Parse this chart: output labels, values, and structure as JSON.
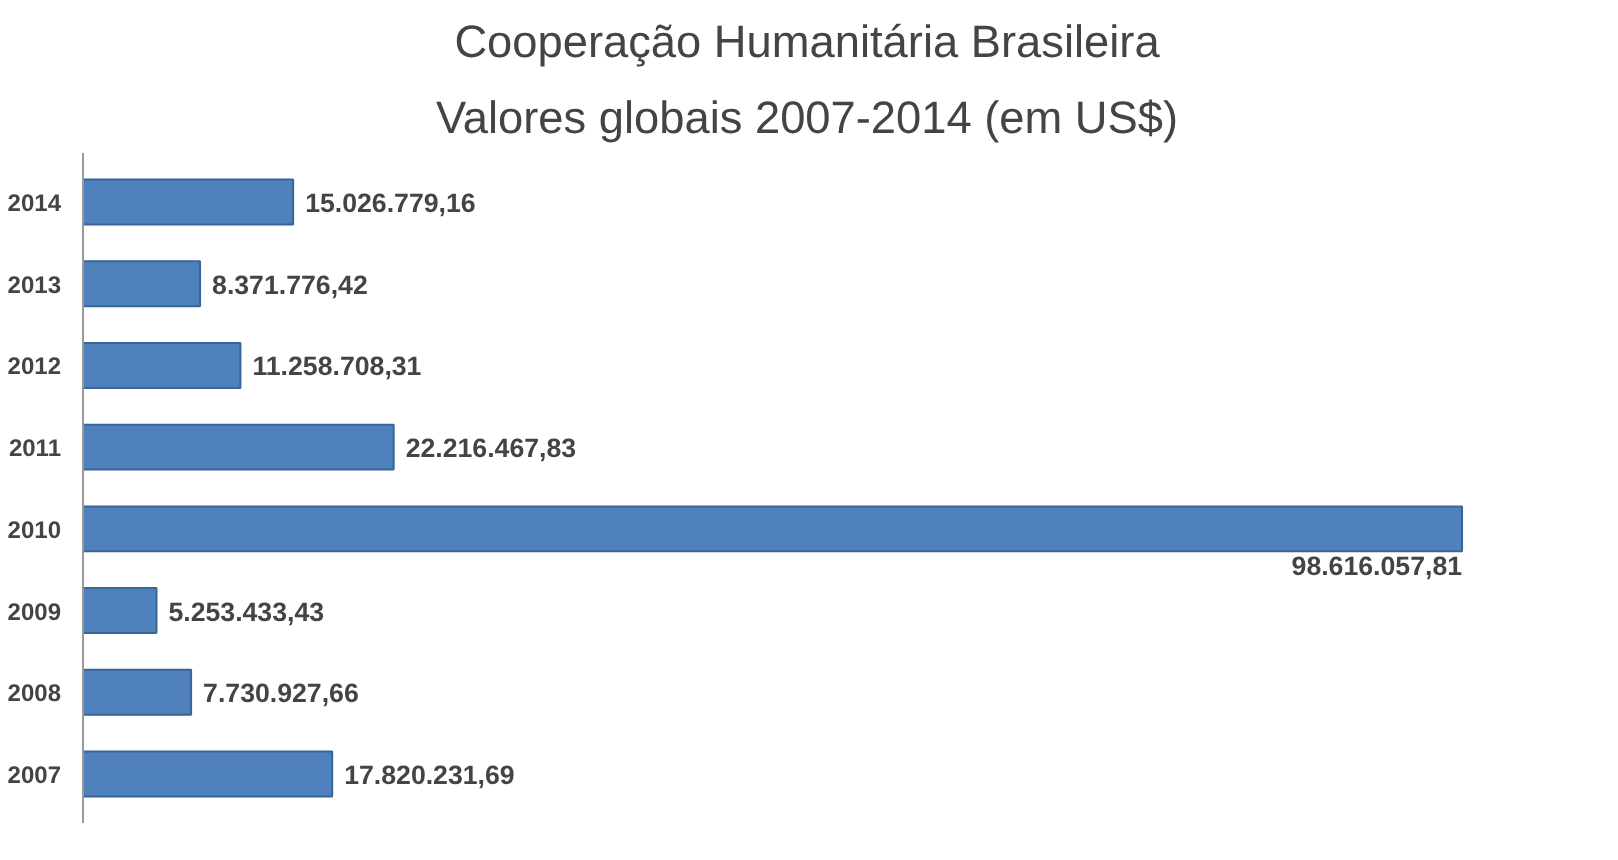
{
  "chart_data": {
    "type": "bar",
    "orientation": "horizontal",
    "title": "Cooperação Humanitária Brasileira",
    "subtitle": "Valores globais 2007-2014 (em US$)",
    "categories": [
      "2014",
      "2013",
      "2012",
      "2011",
      "2010",
      "2009",
      "2008",
      "2007"
    ],
    "values": [
      15026779.16,
      8371776.42,
      11258708.31,
      22216467.83,
      98616057.81,
      5253433.43,
      7730927.66,
      17820231.69
    ],
    "value_labels": [
      "15.026.779,16",
      "8.371.776,42",
      "11.258.708,31",
      "22.216.467,83",
      "98.616.057,81",
      "5.253.433,43",
      "7.730.927,66",
      "17.820.231,69"
    ],
    "color": "#4f81bd",
    "grid": false
  }
}
